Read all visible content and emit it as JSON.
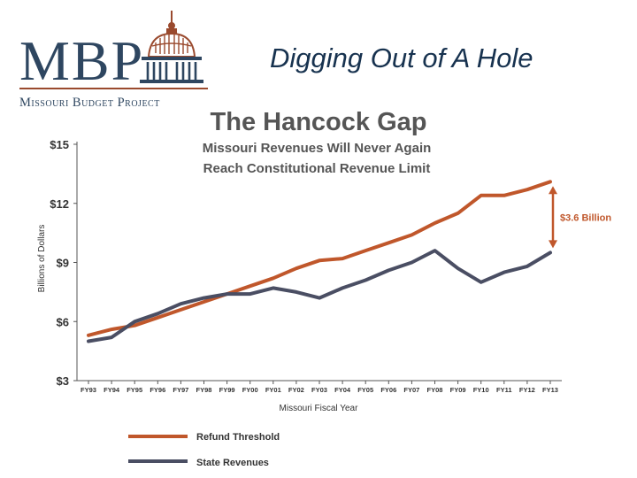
{
  "slide": {
    "title": "Digging Out of A Hole"
  },
  "logo": {
    "letters": "MBP",
    "org_name": "Missouri Budget Project",
    "color_navy": "#2e4660",
    "color_rust": "#9a4a2e"
  },
  "chart_data": {
    "type": "line",
    "title": "The Hancock Gap",
    "subtitle_line1": "Missouri Revenues Will Never Again",
    "subtitle_line2": "Reach Constitutional Revenue Limit",
    "xlabel": "Missouri Fiscal Year",
    "ylabel": "Billions of Dollars",
    "ylim": [
      3,
      15
    ],
    "y_ticks": [
      3,
      6,
      9,
      12,
      15
    ],
    "y_tick_labels": [
      "$3",
      "$6",
      "$9",
      "$12",
      "$15"
    ],
    "categories": [
      "FY93",
      "FY94",
      "FY95",
      "FY96",
      "FY97",
      "FY98",
      "FY99",
      "FY00",
      "FY01",
      "FY02",
      "FY03",
      "FY04",
      "FY05",
      "FY06",
      "FY07",
      "FY08",
      "FY09",
      "FY10",
      "FY11",
      "FY12",
      "FY13"
    ],
    "series": [
      {
        "name": "Refund Threshold",
        "color": "#c0572b",
        "values": [
          5.3,
          5.6,
          5.8,
          6.2,
          6.6,
          7.0,
          7.4,
          7.8,
          8.2,
          8.7,
          9.1,
          9.2,
          9.6,
          10.0,
          10.4,
          11.0,
          11.5,
          12.4,
          12.4,
          12.7,
          13.1
        ]
      },
      {
        "name": "State Revenues",
        "color": "#4a4e63",
        "values": [
          5.0,
          5.2,
          6.0,
          6.4,
          6.9,
          7.2,
          7.4,
          7.4,
          7.7,
          7.5,
          7.2,
          7.7,
          8.1,
          8.6,
          9.0,
          9.6,
          8.7,
          8.0,
          8.5,
          8.8,
          9.5
        ]
      }
    ],
    "annotation": {
      "text": "$3.6 Billion",
      "category": "FY13",
      "from_value": 9.5,
      "to_value": 13.1,
      "color": "#c0572b"
    }
  }
}
